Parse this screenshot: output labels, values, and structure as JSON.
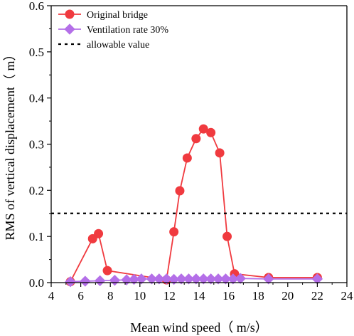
{
  "chart_data": {
    "type": "line",
    "title": "",
    "xlabel": "Mean wind speed（ m/s）",
    "ylabel": "RMS of vertical displacement（ m）",
    "xlim": [
      4,
      24
    ],
    "ylim": [
      0,
      0.6
    ],
    "x_ticks": [
      4,
      6,
      8,
      10,
      12,
      14,
      16,
      18,
      20,
      22,
      24
    ],
    "x_tick_labels": [
      "4",
      "6",
      "8",
      "10",
      "12",
      "14",
      "16",
      "18",
      "20",
      "22",
      "24"
    ],
    "y_ticks": [
      0,
      0.1,
      0.2,
      0.3,
      0.4,
      0.5,
      0.6
    ],
    "y_tick_labels": [
      "0.0",
      "0.1",
      "0.2",
      "0.3",
      "0.4",
      "0.5",
      "0.6"
    ],
    "grid": false,
    "legend_position": "top-left",
    "series": [
      {
        "name": "Original bridge",
        "color": "#f03a3f",
        "marker": "circle",
        "x": [
          5.3,
          6.8,
          7.2,
          7.8,
          11.8,
          12.3,
          12.7,
          13.2,
          13.8,
          14.3,
          14.8,
          15.4,
          15.9,
          16.4,
          18.7,
          22.0
        ],
        "y": [
          0.002,
          0.095,
          0.106,
          0.026,
          0.006,
          0.11,
          0.199,
          0.27,
          0.312,
          0.333,
          0.325,
          0.281,
          0.1,
          0.019,
          0.011,
          0.011
        ]
      },
      {
        "name": "Ventilation rate 30%",
        "color": "#b46fe8",
        "marker": "diamond",
        "x": [
          5.3,
          6.3,
          7.3,
          8.3,
          9.1,
          9.6,
          10.1,
          10.8,
          11.3,
          11.8,
          12.3,
          12.8,
          13.3,
          13.8,
          14.3,
          14.8,
          15.3,
          15.8,
          16.3,
          16.8,
          18.7,
          22.0
        ],
        "y": [
          0.002,
          0.003,
          0.004,
          0.005,
          0.006,
          0.007,
          0.008,
          0.008,
          0.008,
          0.008,
          0.007,
          0.008,
          0.008,
          0.008,
          0.008,
          0.008,
          0.008,
          0.008,
          0.008,
          0.009,
          0.008,
          0.008
        ]
      },
      {
        "name": "allowable value",
        "color": "#000000",
        "style": "dashed",
        "x": [
          4,
          24
        ],
        "y": [
          0.15,
          0.15
        ]
      }
    ]
  }
}
